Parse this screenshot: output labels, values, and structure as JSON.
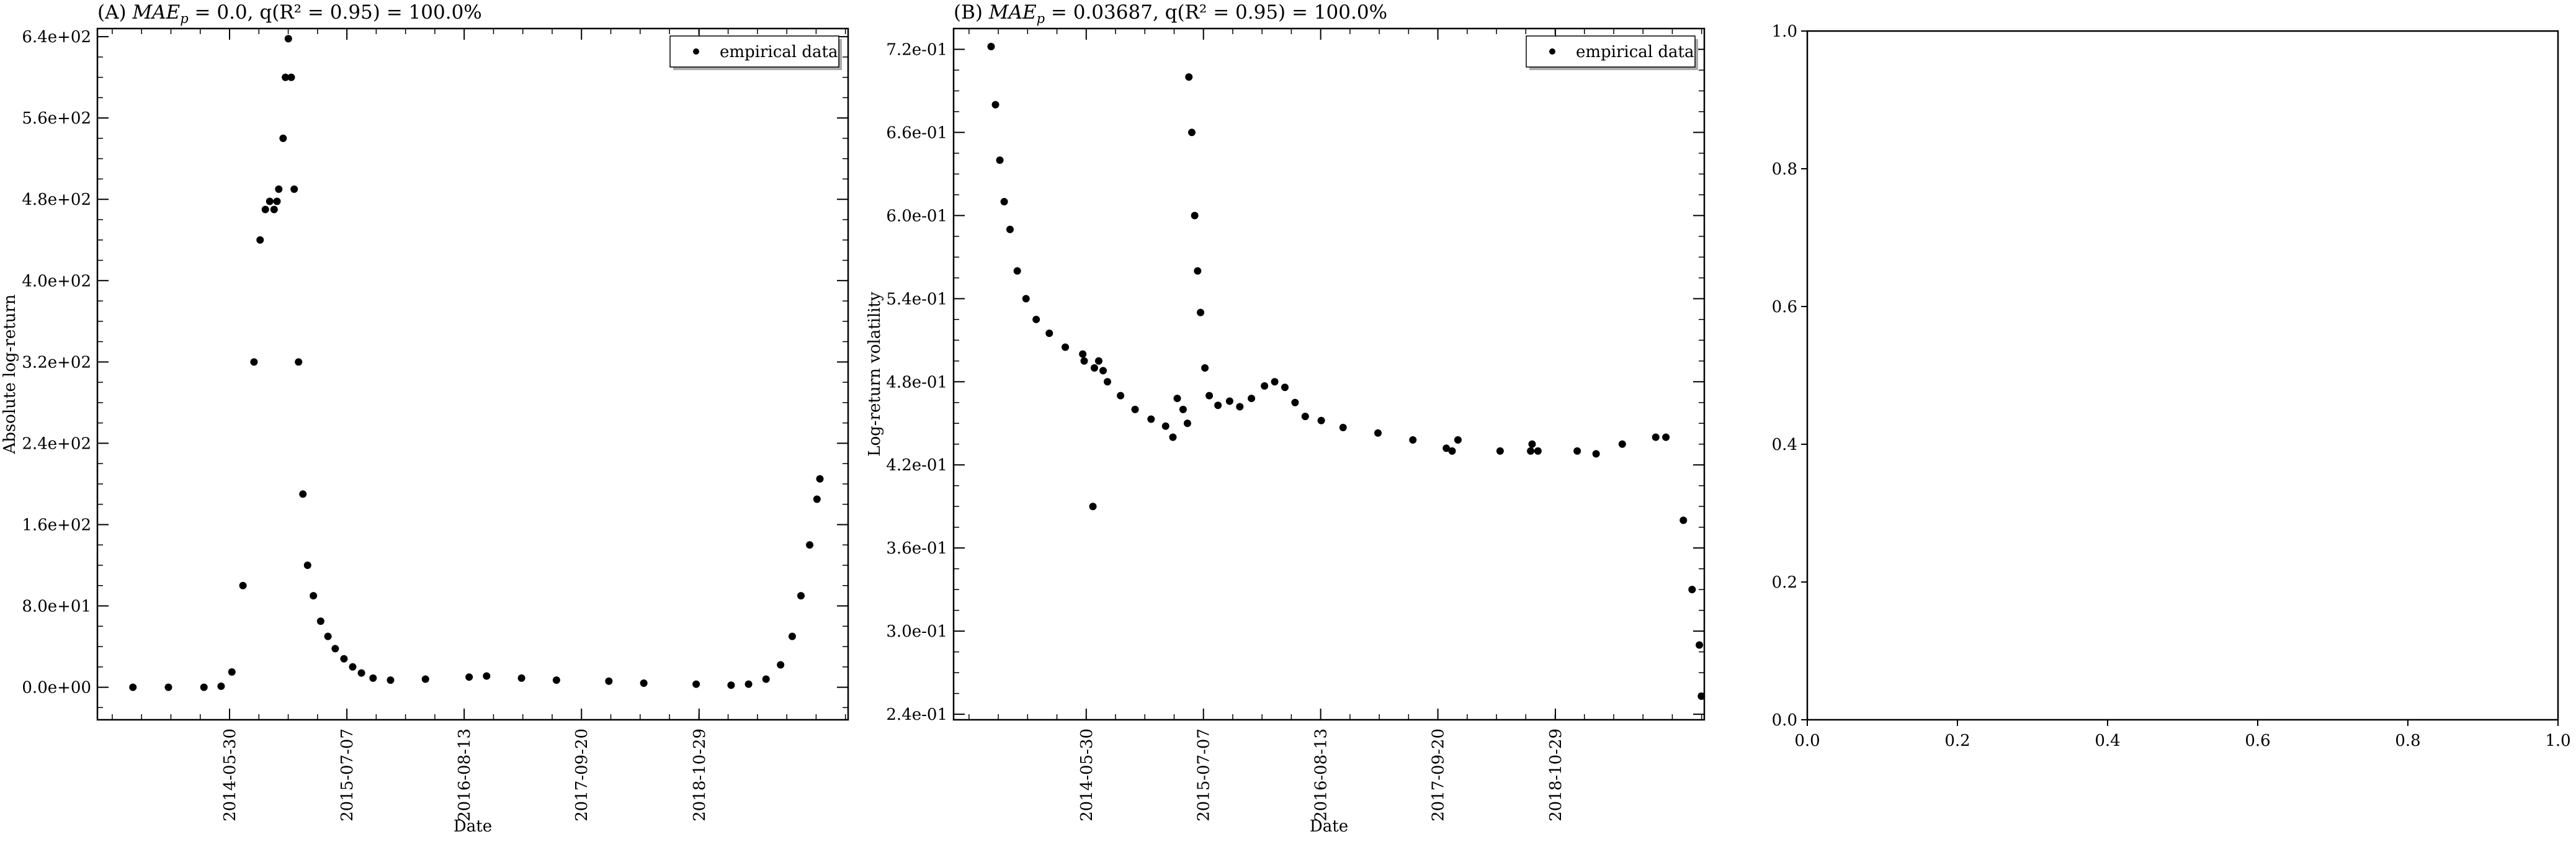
{
  "chart_data": [
    {
      "type": "scatter",
      "title": "(A) MAE_p = 0.0, q(R² = 0.95) = 100.0%",
      "title_prefix": "(A) ",
      "title_rest": ", q(R² = 0.95) = 100.0%",
      "metric_value": "0.0",
      "xlabel": "Date",
      "ylabel": "Absolute log-return",
      "xticks": [
        "2014-05-30",
        "2015-07-07",
        "2016-08-13",
        "2017-09-20",
        "2018-10-29"
      ],
      "yticks": [
        "0.0e+00",
        "8.0e+01",
        "1.6e+02",
        "2.4e+02",
        "3.2e+02",
        "4.0e+02",
        "4.8e+02",
        "5.6e+02",
        "6.4e+02"
      ],
      "ylim": [
        -32,
        648
      ],
      "xlim": [
        "2013-03-02",
        "2020-03-24"
      ],
      "legend": "empirical data",
      "legend_position": "top-right",
      "grid": false,
      "points": [
        [
          "2013-07-02",
          0
        ],
        [
          "2013-11-01",
          0
        ],
        [
          "2014-03-03",
          0
        ],
        [
          "2014-05-01",
          1
        ],
        [
          "2014-06-07",
          15
        ],
        [
          "2014-07-15",
          100
        ],
        [
          "2014-08-22",
          320
        ],
        [
          "2014-09-12",
          440
        ],
        [
          "2014-09-30",
          470
        ],
        [
          "2014-10-15",
          478
        ],
        [
          "2014-10-30",
          470
        ],
        [
          "2014-11-09",
          478
        ],
        [
          "2014-11-15",
          490
        ],
        [
          "2014-11-30",
          540
        ],
        [
          "2014-12-08",
          600
        ],
        [
          "2014-12-18",
          638
        ],
        [
          "2014-12-28",
          600
        ],
        [
          "2015-01-07",
          490
        ],
        [
          "2015-01-22",
          320
        ],
        [
          "2015-02-06",
          190
        ],
        [
          "2015-02-22",
          120
        ],
        [
          "2015-03-14",
          90
        ],
        [
          "2015-04-08",
          65
        ],
        [
          "2015-05-03",
          50
        ],
        [
          "2015-05-28",
          38
        ],
        [
          "2015-06-27",
          28
        ],
        [
          "2015-07-27",
          20
        ],
        [
          "2015-08-26",
          14
        ],
        [
          "2015-10-05",
          9
        ],
        [
          "2015-12-04",
          7
        ],
        [
          "2016-04-02",
          8
        ],
        [
          "2016-08-30",
          10
        ],
        [
          "2016-10-29",
          11
        ],
        [
          "2017-02-26",
          9
        ],
        [
          "2017-06-26",
          7
        ],
        [
          "2017-12-23",
          6
        ],
        [
          "2018-04-22",
          4
        ],
        [
          "2018-10-19",
          3
        ],
        [
          "2019-02-16",
          2
        ],
        [
          "2019-04-17",
          3
        ],
        [
          "2019-06-16",
          8
        ],
        [
          "2019-08-05",
          22
        ],
        [
          "2019-09-14",
          50
        ],
        [
          "2019-10-14",
          90
        ],
        [
          "2019-11-13",
          140
        ],
        [
          "2019-12-08",
          185
        ],
        [
          "2019-12-18",
          205
        ]
      ]
    },
    {
      "type": "scatter",
      "title": "(B) MAE_p = 0.03687, q(R² = 0.95) = 100.0%",
      "title_prefix": "(B) ",
      "title_rest": ", q(R² = 0.95) = 100.0%",
      "metric_value": "0.03687",
      "xlabel": "Date",
      "ylabel": "Log-return volatility",
      "xticks": [
        "2014-05-30",
        "2015-07-07",
        "2016-08-13",
        "2017-09-20",
        "2018-10-29"
      ],
      "yticks": [
        "2.4e-01",
        "3.0e-01",
        "3.6e-01",
        "4.2e-01",
        "4.8e-01",
        "5.4e-01",
        "6.0e-01",
        "6.6e-01",
        "7.2e-01"
      ],
      "ylim": [
        0.236,
        0.735
      ],
      "xlim": [
        "2013-02-28",
        "2020-03-24"
      ],
      "legend": "empirical data",
      "legend_position": "top-right",
      "grid": false,
      "points": [
        [
          "2013-07-07",
          0.722
        ],
        [
          "2013-07-22",
          0.68
        ],
        [
          "2013-08-06",
          0.64
        ],
        [
          "2013-08-21",
          0.61
        ],
        [
          "2013-09-10",
          0.59
        ],
        [
          "2013-10-05",
          0.56
        ],
        [
          "2013-11-04",
          0.54
        ],
        [
          "2013-12-09",
          0.525
        ],
        [
          "2014-01-23",
          0.515
        ],
        [
          "2014-03-19",
          0.505
        ],
        [
          "2014-05-18",
          0.5
        ],
        [
          "2014-05-23",
          0.495
        ],
        [
          "2014-06-27",
          0.49
        ],
        [
          "2014-07-12",
          0.495
        ],
        [
          "2014-07-27",
          0.488
        ],
        [
          "2014-08-11",
          0.48
        ],
        [
          "2014-09-25",
          0.47
        ],
        [
          "2014-11-14",
          0.46
        ],
        [
          "2015-01-08",
          0.453
        ],
        [
          "2015-02-27",
          0.448
        ],
        [
          "2015-03-24",
          0.44
        ],
        [
          "2015-04-08",
          0.468
        ],
        [
          "2015-04-28",
          0.46
        ],
        [
          "2015-05-13",
          0.45
        ],
        [
          "2015-05-18",
          0.7
        ],
        [
          "2015-05-28",
          0.66
        ],
        [
          "2015-06-07",
          0.6
        ],
        [
          "2015-06-17",
          0.56
        ],
        [
          "2015-06-27",
          0.53
        ],
        [
          "2015-07-12",
          0.49
        ],
        [
          "2015-07-27",
          0.47
        ],
        [
          "2015-08-26",
          0.463
        ],
        [
          "2015-10-05",
          0.466
        ],
        [
          "2015-11-09",
          0.462
        ],
        [
          "2015-12-19",
          0.468
        ],
        [
          "2016-02-02",
          0.477
        ],
        [
          "2016-03-08",
          0.48
        ],
        [
          "2016-04-12",
          0.476
        ],
        [
          "2016-05-17",
          0.465
        ],
        [
          "2016-06-21",
          0.455
        ],
        [
          "2016-08-15",
          0.452
        ],
        [
          "2016-10-29",
          0.447
        ],
        [
          "2017-02-26",
          0.443
        ],
        [
          "2017-06-26",
          0.438
        ],
        [
          "2017-10-19",
          0.432
        ],
        [
          "2017-11-08",
          0.43
        ],
        [
          "2018-04-22",
          0.43
        ],
        [
          "2018-08-05",
          0.43
        ],
        [
          "2018-08-10",
          0.435
        ],
        [
          "2018-08-30",
          0.43
        ],
        [
          "2019-01-12",
          0.43
        ],
        [
          "2019-03-18",
          0.428
        ],
        [
          "2019-06-16",
          0.435
        ],
        [
          "2019-10-09",
          0.44
        ],
        [
          "2019-11-13",
          0.44
        ],
        [
          "2020-01-12",
          0.38
        ],
        [
          "2020-02-11",
          0.33
        ],
        [
          "2020-03-07",
          0.29
        ],
        [
          "2020-03-14",
          0.253
        ],
        [
          "2014-06-22",
          0.39
        ],
        [
          "2017-11-28",
          0.438
        ]
      ]
    },
    {
      "type": "scatter",
      "title": "",
      "xticks": [
        "0.0",
        "0.2",
        "0.4",
        "0.6",
        "0.8",
        "1.0"
      ],
      "yticks": [
        "0.0",
        "0.2",
        "0.4",
        "0.6",
        "0.8",
        "1.0"
      ],
      "xlim": [
        0,
        1
      ],
      "ylim": [
        0,
        1
      ],
      "points": []
    }
  ]
}
